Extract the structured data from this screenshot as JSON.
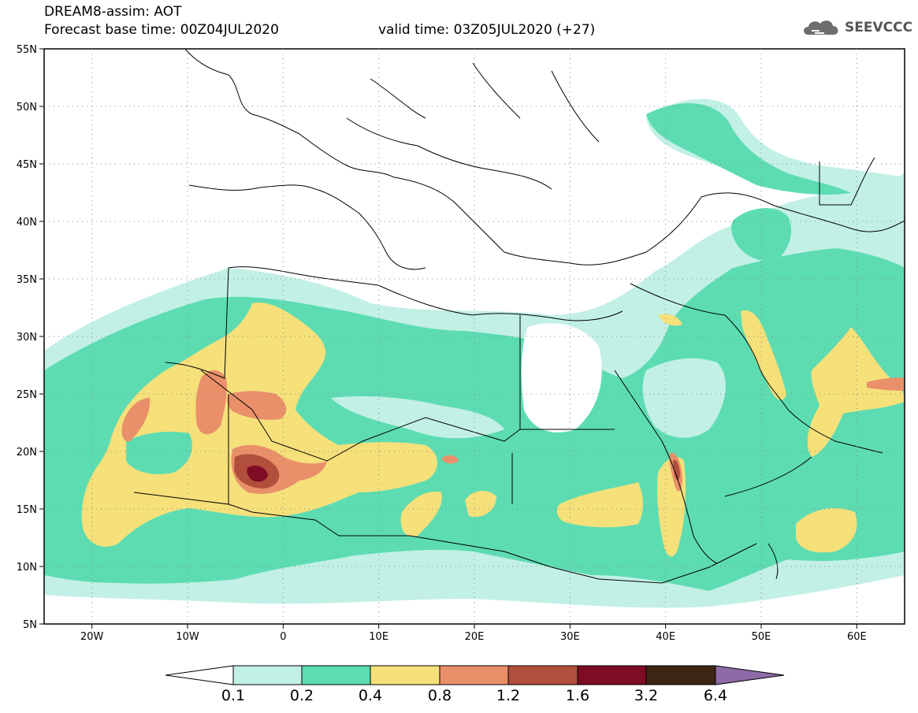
{
  "header": {
    "title": "DREAM8-assim: AOT",
    "base_time": "Forecast base time: 00Z04JUL2020",
    "valid_time": "valid time: 03Z05JUL2020 (+27)"
  },
  "logo": {
    "text": "SEEVCCC",
    "icon": "cloud-icon"
  },
  "map": {
    "lon_range": [
      -25,
      65
    ],
    "lat_range": [
      5,
      55
    ],
    "lat_labels": [
      "55N",
      "50N",
      "45N",
      "40N",
      "35N",
      "30N",
      "25N",
      "20N",
      "15N",
      "10N",
      "5N"
    ],
    "lon_labels": [
      "20W",
      "10W",
      "0",
      "10E",
      "20E",
      "30E",
      "40E",
      "50E",
      "60E"
    ],
    "grid": "dotted"
  },
  "colorbar": {
    "levels": [
      "0.1",
      "0.2",
      "0.4",
      "0.8",
      "1.2",
      "1.6",
      "3.2",
      "6.4"
    ],
    "colors": [
      "#c2f0e6",
      "#5ddcb2",
      "#f5e07a",
      "#e9906a",
      "#b24e3c",
      "#7e0c24",
      "#3b2616",
      "#8f6aa8"
    ],
    "extend_low_color": "#ffffff"
  }
}
